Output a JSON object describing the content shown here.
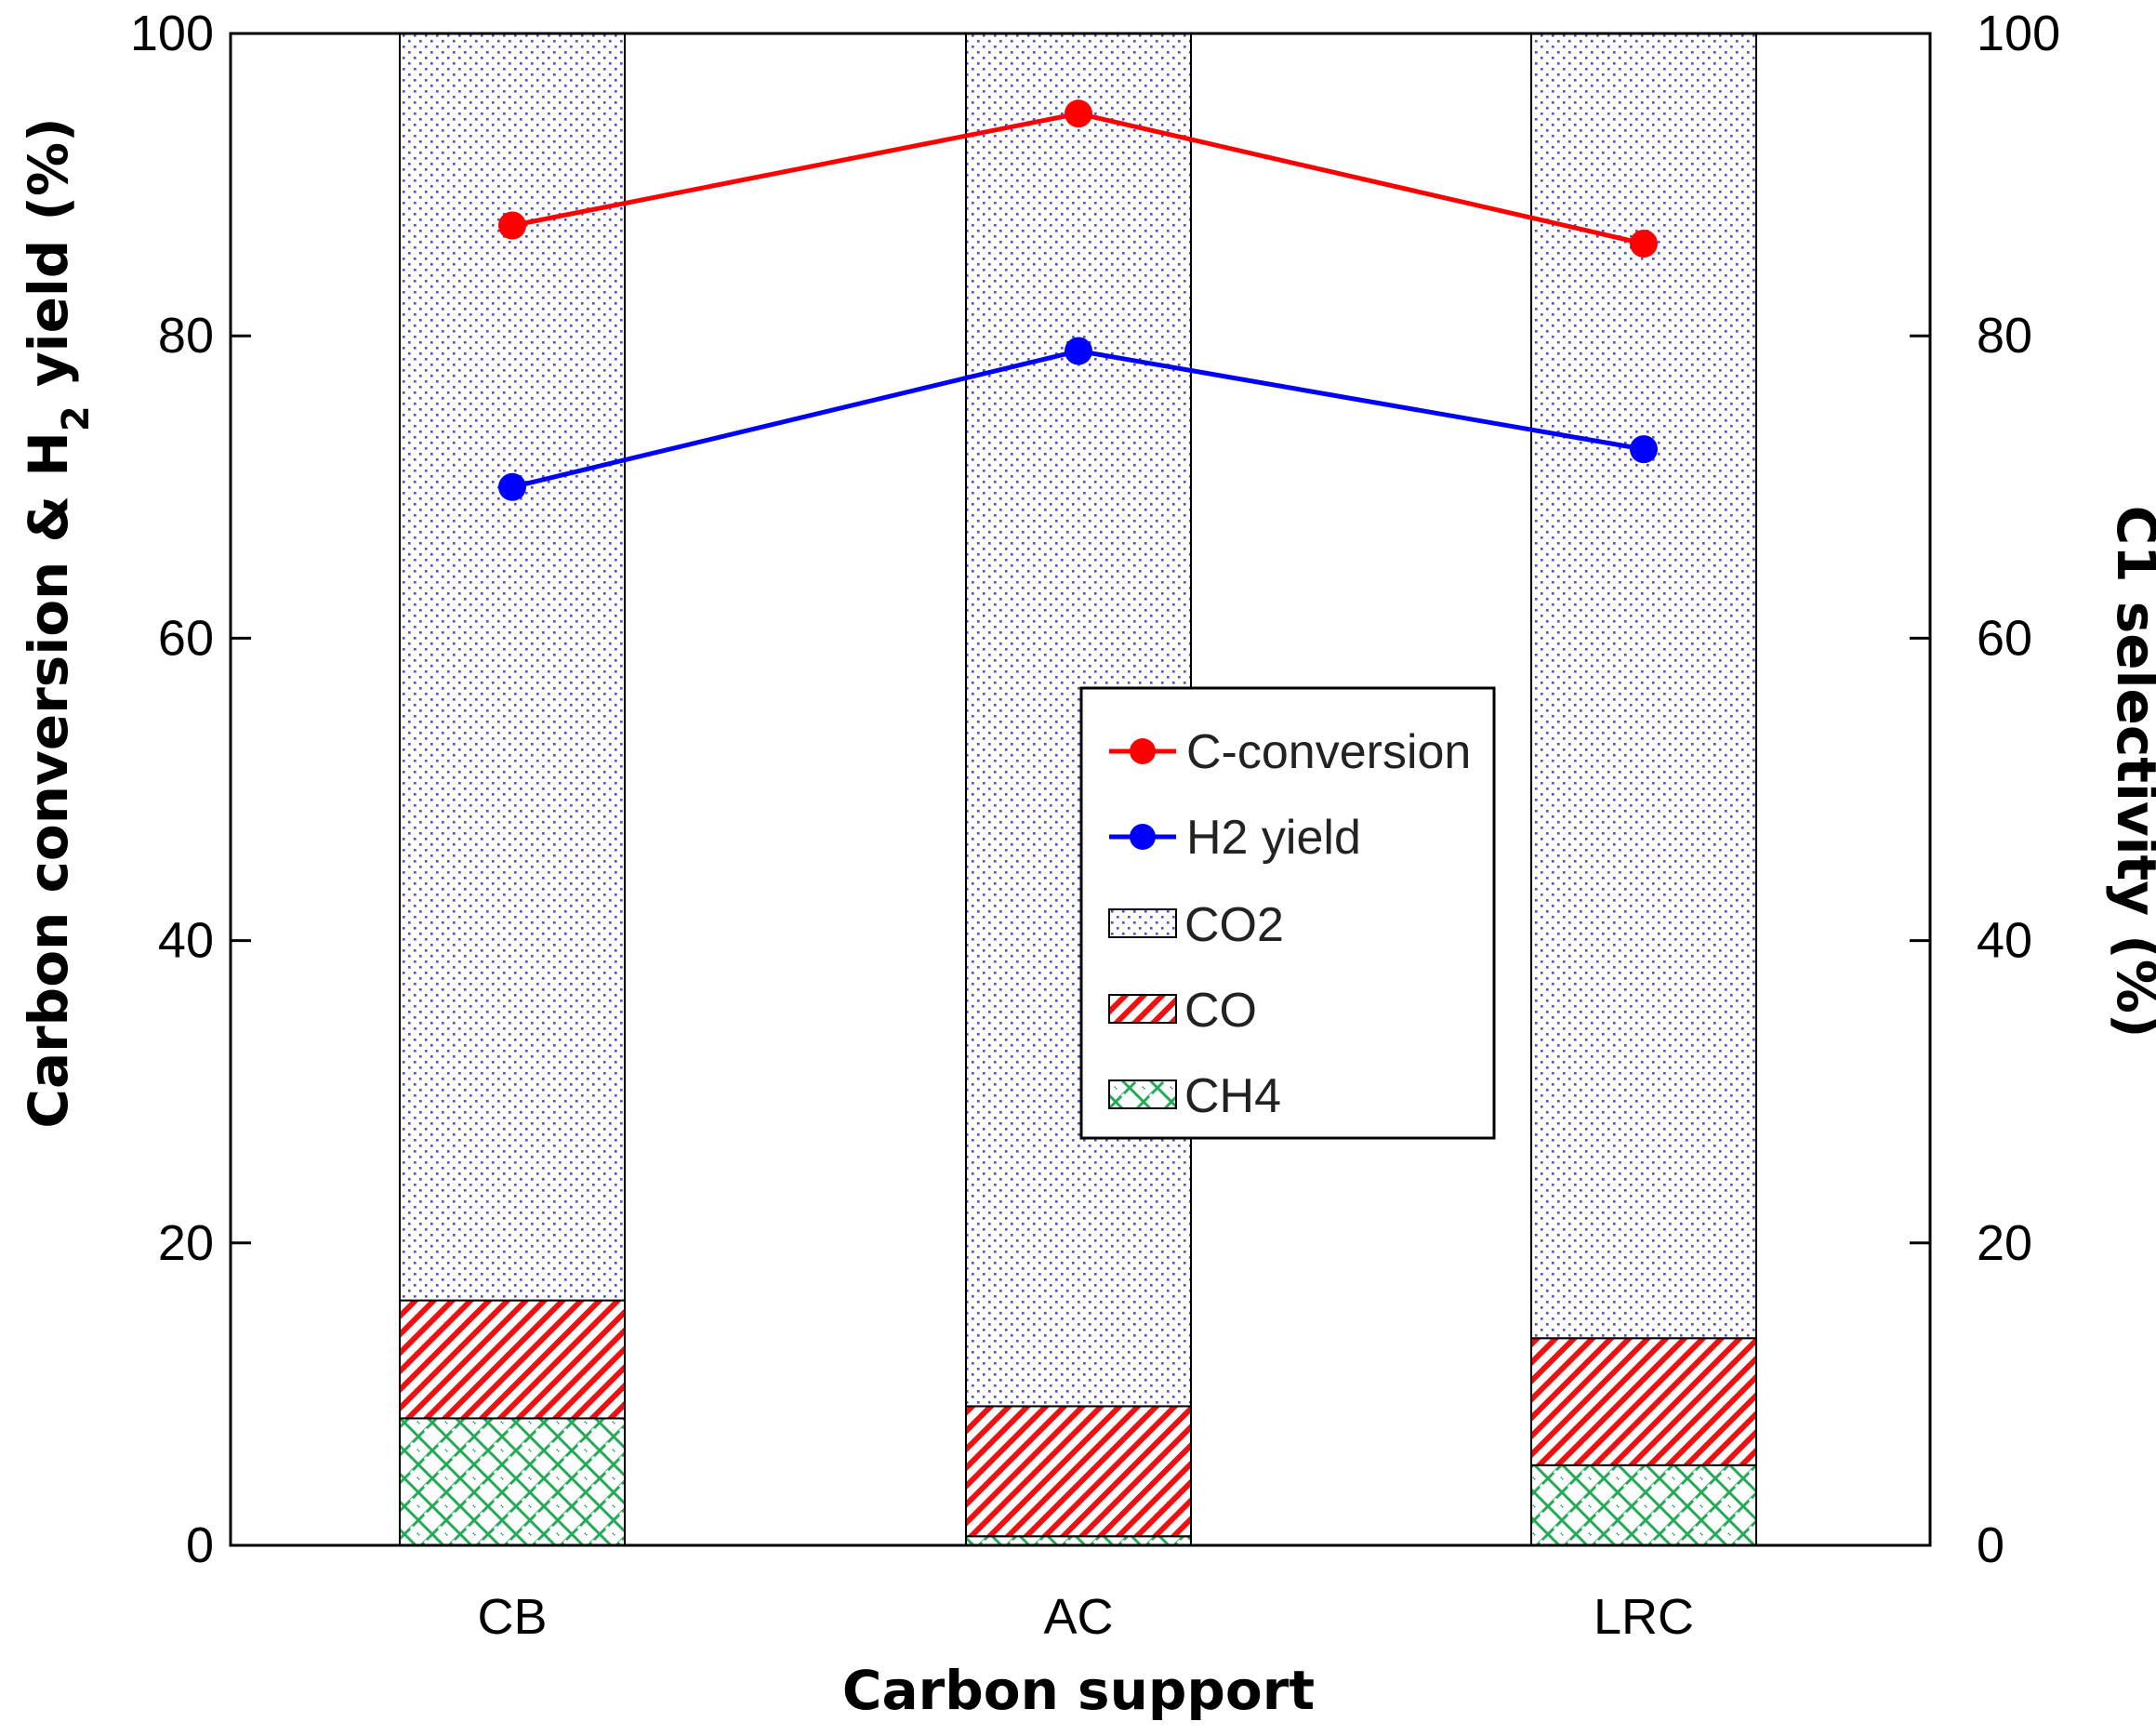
{
  "chart_data": {
    "type": "bar",
    "stacked": true,
    "xlabel": "Carbon support",
    "ylabel": "Carbon conversion & H",
    "ylabel_sub": "2",
    "ylabel_tail": " yield (%)",
    "ylabel_right": "C1 selectivity (%)",
    "categories": [
      "CB",
      "AC",
      "LRC"
    ],
    "ylim": [
      0,
      100
    ],
    "ylim_right": [
      0,
      100
    ],
    "yticks": [
      0,
      20,
      40,
      60,
      80,
      100
    ],
    "bar_series": [
      {
        "name": "CH4",
        "values": [
          8.4,
          0.6,
          5.3
        ],
        "color": "#22aa55"
      },
      {
        "name": "CO",
        "values": [
          7.8,
          8.6,
          8.4
        ],
        "color": "#ee1111"
      },
      {
        "name": "CO2",
        "values": [
          83.8,
          90.8,
          86.3
        ],
        "color": "#3333ee"
      }
    ],
    "line_series": [
      {
        "name": "C-conversion",
        "values": [
          87.3,
          94.7,
          86.1
        ],
        "color": "#ff0000"
      },
      {
        "name": "H2 yield",
        "values": [
          70.0,
          79.0,
          72.5
        ],
        "color": "#0000ff"
      }
    ],
    "legend": {
      "position": "center",
      "entries": [
        "C-conversion",
        "H2 yield",
        "CO2",
        "CO",
        "CH4"
      ]
    }
  }
}
